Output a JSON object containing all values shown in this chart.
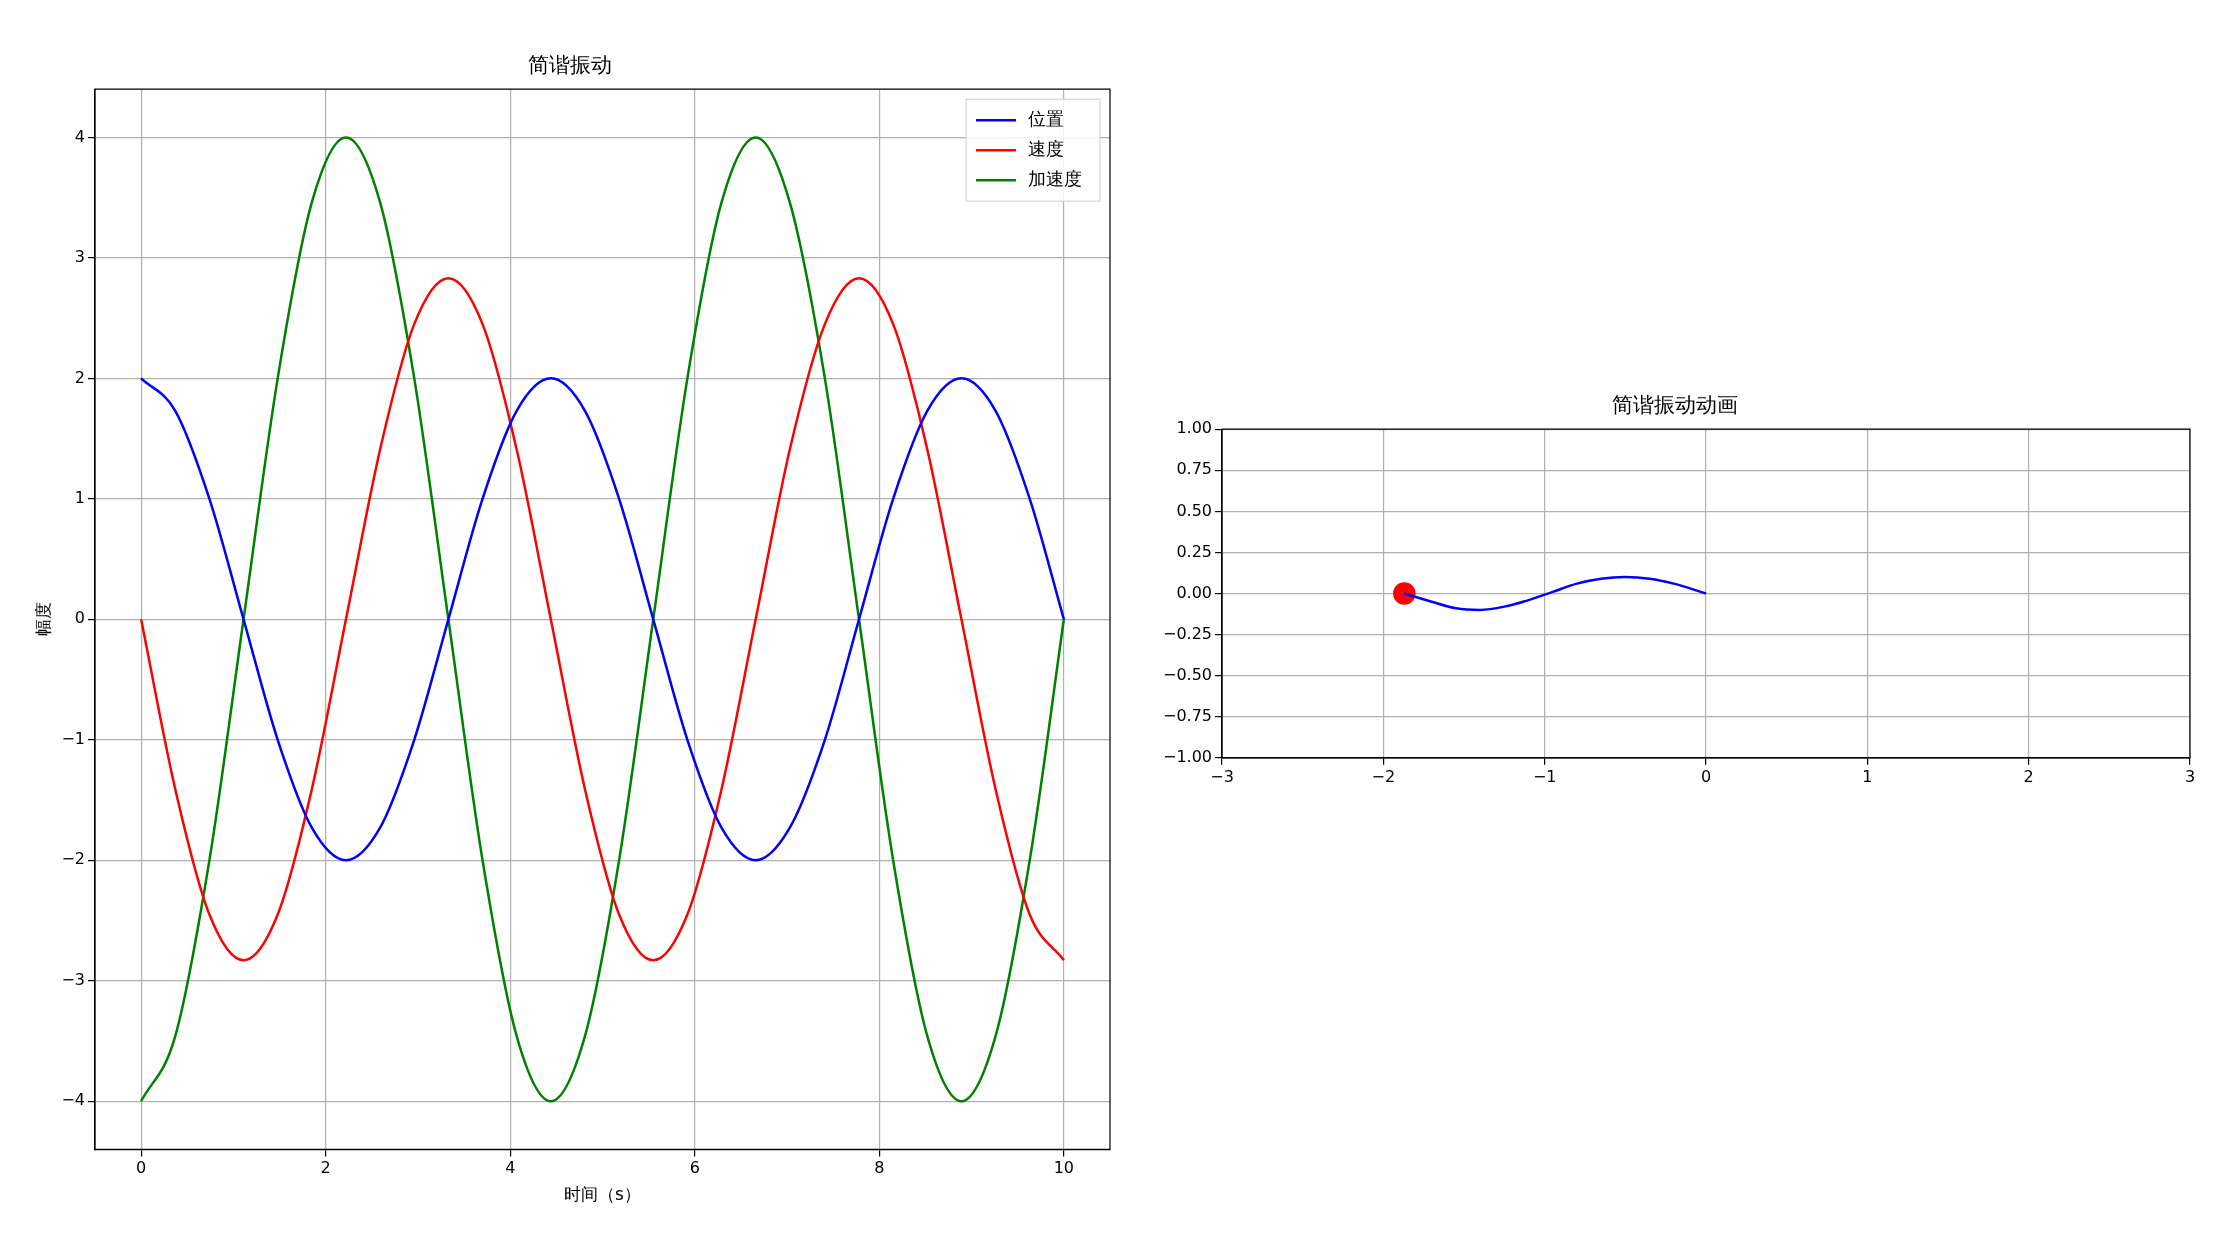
{
  "chart_data": [
    {
      "type": "line",
      "title": "简谐振动",
      "xlabel": "时间（s）",
      "ylabel": "幅度",
      "xlim": [
        -0.5,
        10.5
      ],
      "ylim": [
        -4.4,
        4.4
      ],
      "xticks": [
        0,
        2,
        4,
        6,
        8,
        10
      ],
      "yticks": [
        {
          "value": -4,
          "label": "−4"
        },
        {
          "value": -3,
          "label": "−3"
        },
        {
          "value": -2,
          "label": "−2"
        },
        {
          "value": -1,
          "label": "−1"
        },
        0,
        1,
        2,
        3,
        4
      ],
      "grid": true,
      "legend": "top right",
      "x": [
        0,
        0.37,
        0.74,
        1.11,
        1.48,
        1.85,
        2.22,
        2.59,
        2.96,
        3.33,
        3.7,
        4.07,
        4.44,
        4.81,
        5.18,
        5.55,
        5.92,
        6.29,
        6.66,
        7.03,
        7.41,
        7.78,
        8.15,
        8.52,
        8.89,
        9.26,
        9.63,
        10
      ],
      "series": [
        {
          "name": "位置",
          "color": "#0000ff",
          "values": [
            2,
            1.73,
            1,
            0,
            -1,
            -1.73,
            -2,
            -1.73,
            -1,
            0,
            1,
            1.73,
            2,
            1.73,
            1,
            0,
            -1,
            -1.73,
            -2,
            -1.73,
            -1,
            0,
            1,
            1.73,
            2,
            1.73,
            1,
            0
          ]
        },
        {
          "name": "速度",
          "color": "#ff0000",
          "values": [
            0,
            -1.41,
            -2.45,
            -2.83,
            -2.45,
            -1.41,
            0,
            1.41,
            2.45,
            2.83,
            2.45,
            1.41,
            0,
            -1.41,
            -2.45,
            -2.83,
            -2.45,
            -1.41,
            0,
            1.41,
            2.45,
            2.83,
            2.45,
            1.41,
            0,
            -1.41,
            -2.45,
            -2.83
          ]
        },
        {
          "name": "加速度",
          "color": "#008000",
          "values": [
            -4,
            -3.46,
            -2,
            0,
            2,
            3.46,
            4,
            3.46,
            2,
            0,
            -2,
            -3.46,
            -4,
            -3.46,
            -2,
            0,
            2,
            3.46,
            4,
            3.46,
            2,
            0,
            -2,
            -3.46,
            -4,
            -3.46,
            -2,
            0
          ]
        }
      ]
    },
    {
      "type": "line",
      "title": "简谐振动动画",
      "xlim": [
        -3,
        3
      ],
      "ylim": [
        -1,
        1
      ],
      "xticks": [
        {
          "value": -3,
          "label": "−3"
        },
        {
          "value": -2,
          "label": "−2"
        },
        {
          "value": -1,
          "label": "−1"
        },
        0,
        1,
        2,
        3
      ],
      "yticks": [
        {
          "value": -1,
          "label": "−1.00"
        },
        {
          "value": -0.75,
          "label": "−0.75"
        },
        {
          "value": -0.5,
          "label": "−0.50"
        },
        {
          "value": -0.25,
          "label": "−0.25"
        },
        {
          "value": 0,
          "label": "0.00"
        },
        {
          "value": 0.25,
          "label": "0.25"
        },
        {
          "value": 0.5,
          "label": "0.50"
        },
        {
          "value": 0.75,
          "label": "0.75"
        },
        {
          "value": 1,
          "label": "1.00"
        }
      ],
      "grid": true,
      "series": [
        {
          "color": "#0000ff",
          "x": [
            0,
            -0.2,
            -0.35,
            -0.5,
            -0.65,
            -0.8,
            -0.95,
            -1.1,
            -1.25,
            -1.4,
            -1.55,
            -1.7,
            -1.87
          ],
          "values": [
            0,
            0.06,
            0.09,
            0.1,
            0.09,
            0.06,
            0.01,
            -0.04,
            -0.08,
            -0.1,
            -0.09,
            -0.05,
            0
          ]
        },
        {
          "type": "scatter",
          "color": "#ff0000",
          "marker": "circle",
          "x": [
            -1.87
          ],
          "values": [
            0
          ]
        }
      ]
    }
  ]
}
